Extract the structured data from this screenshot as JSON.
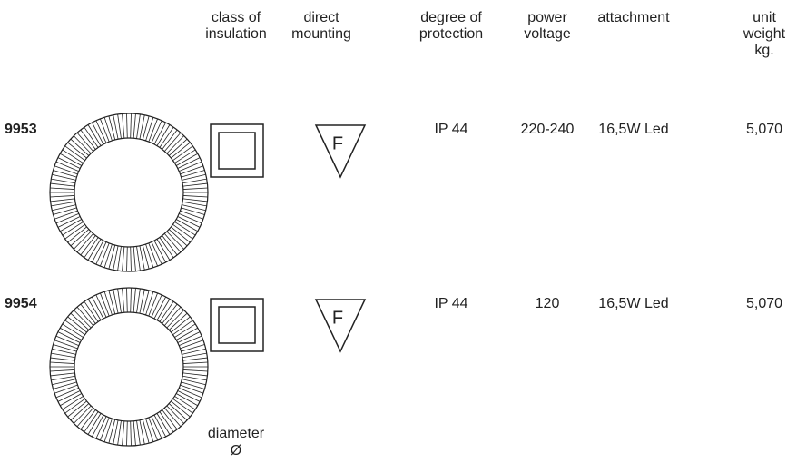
{
  "header": {
    "columns": [
      [
        "class of",
        "insulation"
      ],
      [
        "direct",
        "mounting"
      ],
      [
        "degree of",
        "protection"
      ],
      [
        "power",
        "voltage"
      ],
      [
        "attachment"
      ],
      [
        "unit",
        "weight",
        "kg."
      ]
    ]
  },
  "rows": [
    {
      "code": "9953",
      "mounting_symbol": "F",
      "protection": "IP 44",
      "voltage": "220-240",
      "attachment": "16,5W Led",
      "weight": "5,070"
    },
    {
      "code": "9954",
      "mounting_symbol": "F",
      "protection": "IP 44",
      "voltage": "120",
      "attachment": "16,5W Led",
      "weight": "5,070"
    }
  ],
  "footer": {
    "diameter": [
      "diameter",
      "Ø"
    ]
  }
}
